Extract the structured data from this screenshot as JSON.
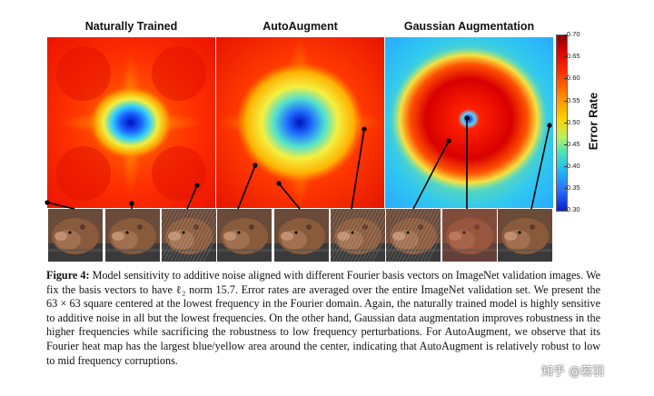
{
  "figure": {
    "panels": [
      {
        "title": "Naturally Trained"
      },
      {
        "title": "AutoAugment"
      },
      {
        "title": "Gaussian Augmentation"
      }
    ],
    "colorbar": {
      "label": "Error Rate",
      "ticks": [
        "0.70",
        "0.65",
        "0.60",
        "0.55",
        "0.50",
        "0.45",
        "0.40",
        "0.35",
        "0.30"
      ]
    },
    "caption": {
      "label": "Figure 4:",
      "lines": [
        "Model sensitivity to additive noise aligned with different Fourier basis vectors on ImageNet validation",
        "images.  We fix the basis vectors to have ℓ₂ norm 15.7.  Error rates are averaged over the entire ImageNet",
        "validation set. We present the 63 × 63 square centered at the lowest frequency in the Fourier domain. Again, the",
        "naturally trained model is highly sensitive to additive noise in all but the lowest frequencies. On the other hand,",
        "Gaussian data augmentation improves robustness in the higher frequencies while sacrificing the robustness to",
        "low frequency perturbations. For AutoAugment, we observe that its Fourier heat map has the largest blue/yellow",
        "area around the center, indicating that AutoAugment is relatively robust to low to mid frequency corruptions."
      ]
    },
    "watermark": "知乎 @若羽"
  }
}
